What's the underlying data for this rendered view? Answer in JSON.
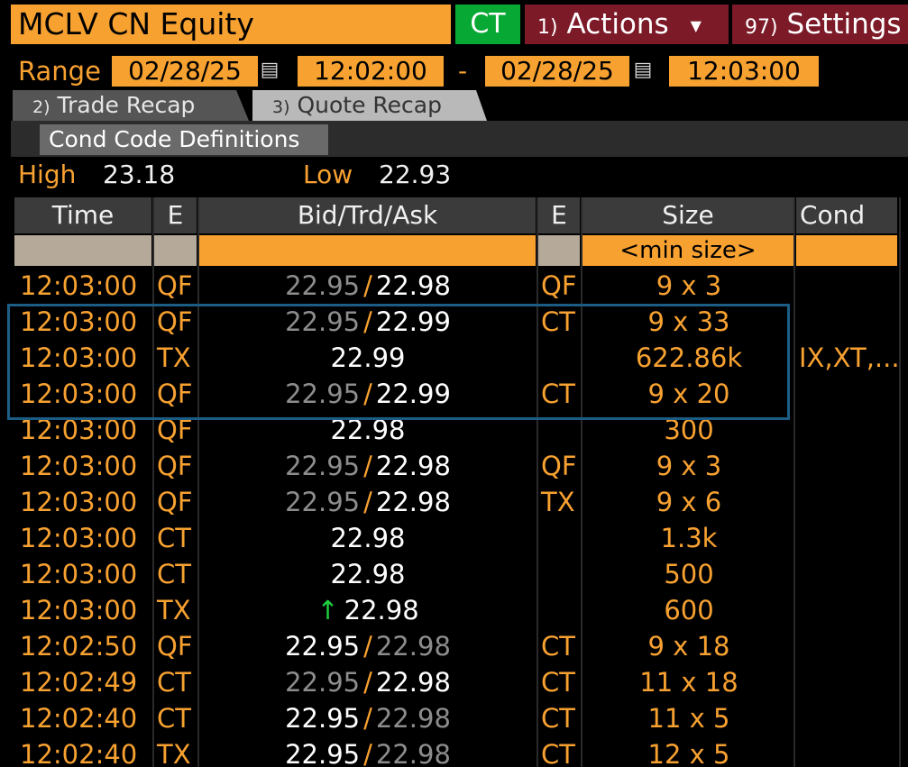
{
  "header": {
    "ticker": "MCLV CN Equity",
    "ct_badge": "CT",
    "actions_num": "1)",
    "actions_label": "Actions",
    "settings_num": "97)",
    "settings_label": "Settings"
  },
  "range": {
    "label": "Range",
    "start_date": "02/28/25",
    "start_time": "12:02:00",
    "separator": "-",
    "end_date": "02/28/25",
    "end_time": "12:03:00"
  },
  "tabs": [
    {
      "num": "2)",
      "label": "Trade Recap"
    },
    {
      "num": "3)",
      "label": "Quote Recap"
    }
  ],
  "cond_code_button": "Cond Code Definitions",
  "stats": {
    "high_label": "High",
    "high_value": "23.18",
    "low_label": "Low",
    "low_value": "22.93"
  },
  "table": {
    "columns": [
      "Time",
      "E",
      "Bid/Trd/Ask",
      "E",
      "Size",
      "Cond"
    ],
    "min_size_placeholder": "<min size>",
    "rows": [
      {
        "time": "12:03:00",
        "e1": "QF",
        "bid": "22.95",
        "trd": "",
        "ask": "22.98",
        "e2": "QF",
        "size": "9 x 3",
        "cond": "",
        "bid_dim": true,
        "ask_dim": false,
        "up": false
      },
      {
        "time": "12:03:00",
        "e1": "QF",
        "bid": "22.95",
        "trd": "",
        "ask": "22.99",
        "e2": "CT",
        "size": "9 x 33",
        "cond": "",
        "bid_dim": true,
        "ask_dim": false,
        "up": false
      },
      {
        "time": "12:03:00",
        "e1": "TX",
        "bid": "",
        "trd": "22.99",
        "ask": "",
        "e2": "",
        "size": "622.86k",
        "cond": "IX,XT,...",
        "bid_dim": false,
        "ask_dim": false,
        "up": false
      },
      {
        "time": "12:03:00",
        "e1": "QF",
        "bid": "22.95",
        "trd": "",
        "ask": "22.99",
        "e2": "CT",
        "size": "9 x 20",
        "cond": "",
        "bid_dim": true,
        "ask_dim": false,
        "up": false
      },
      {
        "time": "12:03:00",
        "e1": "QF",
        "bid": "",
        "trd": "22.98",
        "ask": "",
        "e2": "",
        "size": "300",
        "cond": "",
        "bid_dim": false,
        "ask_dim": false,
        "up": false
      },
      {
        "time": "12:03:00",
        "e1": "QF",
        "bid": "22.95",
        "trd": "",
        "ask": "22.98",
        "e2": "QF",
        "size": "9 x 3",
        "cond": "",
        "bid_dim": true,
        "ask_dim": false,
        "up": false
      },
      {
        "time": "12:03:00",
        "e1": "QF",
        "bid": "22.95",
        "trd": "",
        "ask": "22.98",
        "e2": "TX",
        "size": "9 x 6",
        "cond": "",
        "bid_dim": true,
        "ask_dim": false,
        "up": false
      },
      {
        "time": "12:03:00",
        "e1": "CT",
        "bid": "",
        "trd": "22.98",
        "ask": "",
        "e2": "",
        "size": "1.3k",
        "cond": "",
        "bid_dim": false,
        "ask_dim": false,
        "up": false
      },
      {
        "time": "12:03:00",
        "e1": "CT",
        "bid": "",
        "trd": "22.98",
        "ask": "",
        "e2": "",
        "size": "500",
        "cond": "",
        "bid_dim": false,
        "ask_dim": false,
        "up": false
      },
      {
        "time": "12:03:00",
        "e1": "TX",
        "bid": "",
        "trd": "22.98",
        "ask": "",
        "e2": "",
        "size": "600",
        "cond": "",
        "bid_dim": false,
        "ask_dim": false,
        "up": true
      },
      {
        "time": "12:02:50",
        "e1": "QF",
        "bid": "22.95",
        "trd": "",
        "ask": "22.98",
        "e2": "CT",
        "size": "9 x 18",
        "cond": "",
        "bid_dim": false,
        "ask_dim": true,
        "up": false
      },
      {
        "time": "12:02:49",
        "e1": "CT",
        "bid": "22.95",
        "trd": "",
        "ask": "22.98",
        "e2": "CT",
        "size": "11 x 18",
        "cond": "",
        "bid_dim": true,
        "ask_dim": false,
        "up": false
      },
      {
        "time": "12:02:40",
        "e1": "CT",
        "bid": "22.95",
        "trd": "",
        "ask": "22.98",
        "e2": "CT",
        "size": "11 x 5",
        "cond": "",
        "bid_dim": false,
        "ask_dim": true,
        "up": false
      },
      {
        "time": "12:02:40",
        "e1": "TX",
        "bid": "22.95",
        "trd": "",
        "ask": "22.98",
        "e2": "CT",
        "size": "12 x 5",
        "cond": "",
        "bid_dim": false,
        "ask_dim": true,
        "up": false
      }
    ]
  },
  "colors": {
    "accent_orange": "#f7a131",
    "badge_green": "#08a834",
    "menu_red": "#7c1a28",
    "highlight_blue": "#1c5d85",
    "uptick_green": "#20d040"
  },
  "icons": [
    "calendar-icon",
    "chevron-down-icon",
    "up-arrow-icon"
  ]
}
